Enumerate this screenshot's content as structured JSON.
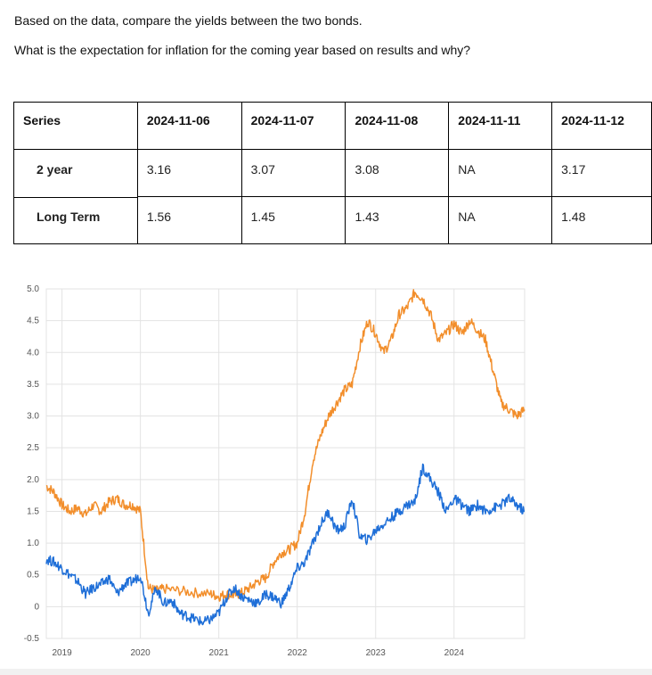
{
  "questions": {
    "q1": "Based on the data, compare the yields between the two bonds.",
    "q2": "What is the expectation for inflation for the coming year based on results and why?"
  },
  "table": {
    "header": [
      "Series",
      "2024-11-06",
      "2024-11-07",
      "2024-11-08",
      "2024-11-11",
      "2024-11-12"
    ],
    "rows": [
      {
        "label": "2 year",
        "values": [
          "3.16",
          "3.07",
          "3.08",
          "NA",
          "3.17"
        ]
      },
      {
        "label": "Long Term",
        "values": [
          "1.56",
          "1.45",
          "1.43",
          "NA",
          "1.48"
        ]
      }
    ]
  },
  "colors": {
    "series_orange": "#f28e2b",
    "series_blue": "#1f6fd8",
    "grid": "#e3e3e3"
  },
  "chart_data": {
    "type": "line",
    "y_ticks": [
      "5.0",
      "4.5",
      "4.0",
      "3.5",
      "3.0",
      "2.5",
      "2.0",
      "1.5",
      "1.0",
      "0.5",
      "0",
      "-0.5"
    ],
    "x_ticks": [
      "2019",
      "2020",
      "2021",
      "2022",
      "2023",
      "2024"
    ],
    "xlim": [
      2018.8,
      2024.9
    ],
    "ylim": [
      -0.5,
      5.0
    ],
    "grid": true,
    "series": [
      {
        "color": "#f28e2b",
        "x": [
          2018.8,
          2018.9,
          2019.0,
          2019.1,
          2019.2,
          2019.3,
          2019.4,
          2019.5,
          2019.6,
          2019.7,
          2019.8,
          2019.9,
          2020.0,
          2020.1,
          2020.2,
          2020.3,
          2020.5,
          2020.7,
          2020.9,
          2021.0,
          2021.1,
          2021.2,
          2021.3,
          2021.4,
          2021.5,
          2021.6,
          2021.7,
          2021.8,
          2021.9,
          2022.0,
          2022.1,
          2022.2,
          2022.3,
          2022.4,
          2022.5,
          2022.6,
          2022.7,
          2022.8,
          2022.9,
          2023.0,
          2023.1,
          2023.2,
          2023.3,
          2023.4,
          2023.5,
          2023.6,
          2023.7,
          2023.8,
          2023.9,
          2024.0,
          2024.1,
          2024.2,
          2024.3,
          2024.4,
          2024.5,
          2024.6,
          2024.7,
          2024.8,
          2024.9
        ],
        "y": [
          1.9,
          1.8,
          1.6,
          1.5,
          1.55,
          1.45,
          1.6,
          1.5,
          1.65,
          1.7,
          1.6,
          1.6,
          1.5,
          0.3,
          0.25,
          0.28,
          0.25,
          0.22,
          0.2,
          0.16,
          0.2,
          0.18,
          0.22,
          0.3,
          0.4,
          0.45,
          0.7,
          0.85,
          0.9,
          1.0,
          1.5,
          2.3,
          2.7,
          3.0,
          3.2,
          3.4,
          3.5,
          4.1,
          4.5,
          4.3,
          4.0,
          4.2,
          4.6,
          4.7,
          4.95,
          4.85,
          4.6,
          4.2,
          4.3,
          4.45,
          4.3,
          4.5,
          4.35,
          4.2,
          3.7,
          3.2,
          3.1,
          3.0,
          3.1
        ]
      },
      {
        "color": "#1f6fd8",
        "x": [
          2018.8,
          2018.9,
          2019.0,
          2019.1,
          2019.2,
          2019.3,
          2019.4,
          2019.5,
          2019.6,
          2019.7,
          2019.8,
          2019.9,
          2020.0,
          2020.1,
          2020.2,
          2020.3,
          2020.4,
          2020.5,
          2020.6,
          2020.7,
          2020.8,
          2020.9,
          2021.0,
          2021.1,
          2021.2,
          2021.3,
          2021.4,
          2021.5,
          2021.6,
          2021.7,
          2021.8,
          2021.9,
          2022.0,
          2022.1,
          2022.2,
          2022.3,
          2022.4,
          2022.5,
          2022.6,
          2022.7,
          2022.8,
          2022.9,
          2023.0,
          2023.1,
          2023.2,
          2023.3,
          2023.4,
          2023.5,
          2023.6,
          2023.7,
          2023.8,
          2023.9,
          2024.0,
          2024.1,
          2024.2,
          2024.3,
          2024.4,
          2024.5,
          2024.6,
          2024.7,
          2024.8,
          2024.9
        ],
        "y": [
          0.75,
          0.7,
          0.6,
          0.5,
          0.4,
          0.2,
          0.3,
          0.35,
          0.45,
          0.2,
          0.35,
          0.4,
          0.5,
          -0.1,
          0.3,
          0.05,
          0.1,
          -0.1,
          -0.15,
          -0.2,
          -0.25,
          -0.2,
          -0.1,
          0.15,
          0.3,
          0.15,
          0.1,
          0.05,
          0.2,
          0.15,
          0.05,
          0.3,
          0.6,
          0.7,
          1.0,
          1.3,
          1.5,
          1.2,
          1.25,
          1.7,
          1.1,
          1.05,
          1.2,
          1.3,
          1.4,
          1.5,
          1.6,
          1.65,
          2.2,
          2.0,
          1.8,
          1.5,
          1.7,
          1.6,
          1.5,
          1.6,
          1.5,
          1.55,
          1.6,
          1.7,
          1.6,
          1.5
        ]
      }
    ]
  }
}
